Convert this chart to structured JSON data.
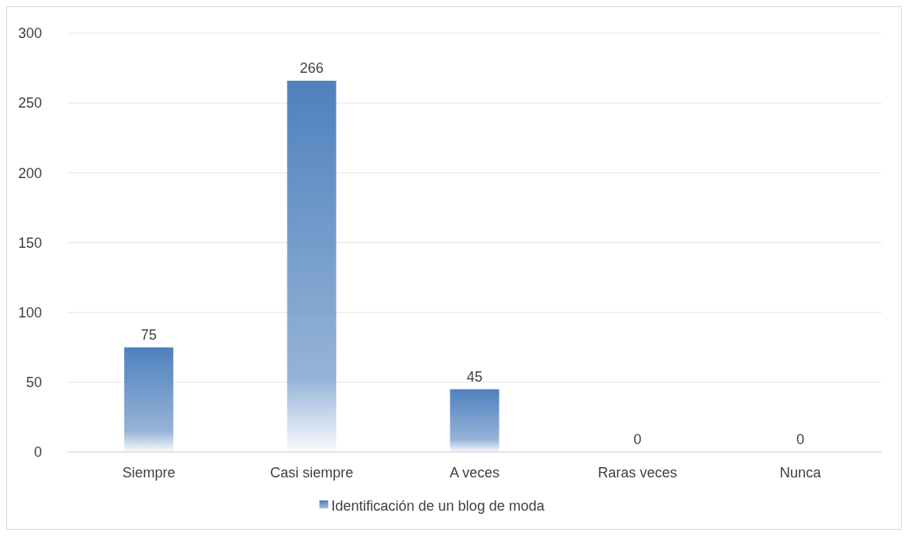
{
  "chart_data": {
    "type": "bar",
    "categories": [
      "Siempre",
      "Casi siempre",
      "A veces",
      "Raras veces",
      "Nunca"
    ],
    "series": [
      {
        "name": "Identificación de un blog de moda",
        "color": "#4f81bd",
        "values": [
          75,
          266,
          45,
          0,
          0
        ]
      }
    ],
    "ylim": [
      0,
      300
    ],
    "yticks": [
      0,
      50,
      100,
      150,
      200,
      250,
      300
    ],
    "grid": "y",
    "legend": "bottom",
    "data_labels": true
  }
}
